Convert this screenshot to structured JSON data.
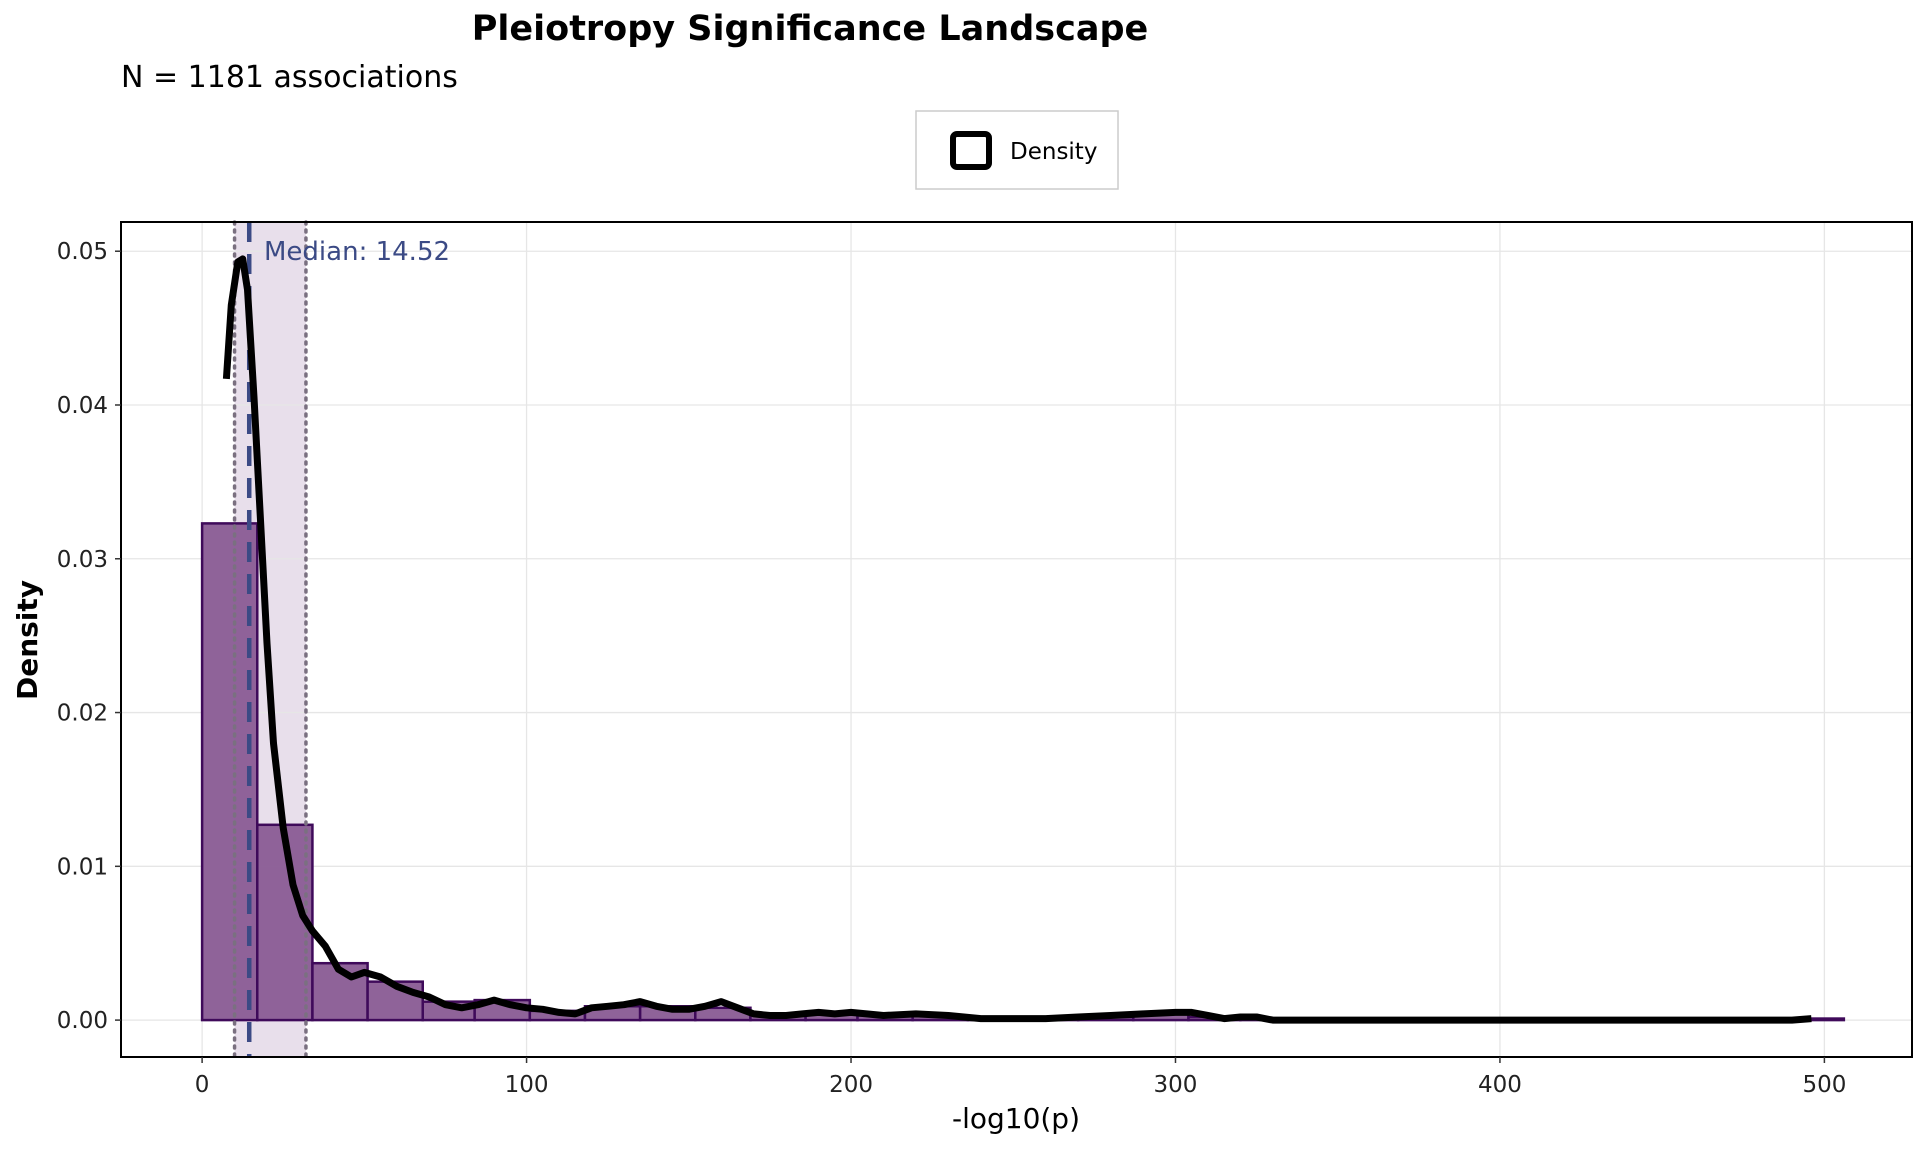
{
  "chart_data": {
    "type": "bar",
    "title": "Pleiotropy Significance Landscape",
    "subtitle": "N = 1181 associations",
    "xlabel": "-log10(p)",
    "ylabel": "Density",
    "xlim": [
      -25,
      527
    ],
    "ylim": [
      -0.0024,
      0.0519
    ],
    "xticks": [
      0,
      100,
      200,
      300,
      400,
      500
    ],
    "yticks": [
      0.0,
      0.01,
      0.02,
      0.03,
      0.04,
      0.05
    ],
    "xtick_labels": [
      "0",
      "100",
      "200",
      "300",
      "400",
      "500"
    ],
    "ytick_labels": [
      "0.00",
      "0.01",
      "0.02",
      "0.03",
      "0.04",
      "0.05"
    ],
    "grid": true,
    "legend": {
      "position": "top",
      "entries": [
        "Density"
      ]
    },
    "histogram": {
      "color_fill": "#8b5e96",
      "color_edge": "#3f0a5a",
      "bins": [
        {
          "x0": 0,
          "x1": 17,
          "density": 0.0323
        },
        {
          "x0": 17,
          "x1": 34,
          "density": 0.0127
        },
        {
          "x0": 34,
          "x1": 51,
          "density": 0.0037
        },
        {
          "x0": 51,
          "x1": 68,
          "density": 0.0025
        },
        {
          "x0": 68,
          "x1": 84,
          "density": 0.0012
        },
        {
          "x0": 84,
          "x1": 101,
          "density": 0.0013
        },
        {
          "x0": 101,
          "x1": 118,
          "density": 0.0006
        },
        {
          "x0": 118,
          "x1": 135,
          "density": 0.0009
        },
        {
          "x0": 135,
          "x1": 152,
          "density": 0.0009
        },
        {
          "x0": 152,
          "x1": 169,
          "density": 0.0008
        },
        {
          "x0": 169,
          "x1": 186,
          "density": 0.0003
        },
        {
          "x0": 186,
          "x1": 202,
          "density": 0.0004
        },
        {
          "x0": 202,
          "x1": 219,
          "density": 0.0003
        },
        {
          "x0": 219,
          "x1": 236,
          "density": 0.0003
        },
        {
          "x0": 236,
          "x1": 253,
          "density": 0.0001
        },
        {
          "x0": 253,
          "x1": 270,
          "density": 0.0001
        },
        {
          "x0": 270,
          "x1": 287,
          "density": 0.0002
        },
        {
          "x0": 287,
          "x1": 304,
          "density": 0.0004
        },
        {
          "x0": 304,
          "x1": 320,
          "density": 0.0002
        },
        {
          "x0": 320,
          "x1": 337,
          "density": 0.0001
        },
        {
          "x0": 337,
          "x1": 354,
          "density": 0.0
        },
        {
          "x0": 354,
          "x1": 371,
          "density": 0.0
        },
        {
          "x0": 371,
          "x1": 388,
          "density": 0.0
        },
        {
          "x0": 388,
          "x1": 405,
          "density": 0.0
        },
        {
          "x0": 405,
          "x1": 422,
          "density": 0.0
        },
        {
          "x0": 422,
          "x1": 438,
          "density": 0.0
        },
        {
          "x0": 438,
          "x1": 455,
          "density": 0.0
        },
        {
          "x0": 455,
          "x1": 472,
          "density": 0.0
        },
        {
          "x0": 472,
          "x1": 489,
          "density": 0.0
        },
        {
          "x0": 489,
          "x1": 506,
          "density": 0.0001
        }
      ]
    },
    "series": [
      {
        "name": "Density",
        "type": "line",
        "color": "#000000",
        "x": [
          7.5,
          9,
          11,
          12.5,
          14,
          16,
          18,
          20,
          22,
          25,
          28,
          31,
          34,
          38,
          42,
          46,
          50,
          55,
          60,
          65,
          70,
          75,
          80,
          85,
          90,
          95,
          100,
          105,
          110,
          115,
          120,
          125,
          130,
          135,
          140,
          145,
          150,
          155,
          160,
          165,
          170,
          175,
          180,
          185,
          190,
          195,
          200,
          210,
          220,
          230,
          240,
          250,
          260,
          270,
          280,
          290,
          300,
          305,
          310,
          315,
          320,
          325,
          330,
          340,
          360,
          400,
          450,
          490,
          496
        ],
        "y": [
          0.0417,
          0.0465,
          0.0493,
          0.0495,
          0.0475,
          0.0405,
          0.0325,
          0.0245,
          0.018,
          0.0125,
          0.0088,
          0.0068,
          0.0058,
          0.0048,
          0.0033,
          0.0028,
          0.0031,
          0.0028,
          0.0022,
          0.0018,
          0.0015,
          0.001,
          0.0008,
          0.001,
          0.0013,
          0.001,
          0.0008,
          0.0007,
          0.0005,
          0.0004,
          0.0008,
          0.0009,
          0.001,
          0.0012,
          0.0009,
          0.0007,
          0.0007,
          0.0009,
          0.0012,
          0.0008,
          0.0004,
          0.0003,
          0.0003,
          0.0004,
          0.0005,
          0.0004,
          0.0005,
          0.0003,
          0.0004,
          0.0003,
          0.0001,
          0.0001,
          0.0001,
          0.0002,
          0.0003,
          0.0004,
          0.0005,
          0.0005,
          0.0003,
          0.0001,
          0.0002,
          0.0002,
          0.0,
          0.0,
          0.0,
          0.0,
          0.0,
          0.0,
          0.0001
        ]
      }
    ],
    "median": {
      "value": 14.52,
      "label": "Median: 14.52",
      "color": "#3b4a85"
    },
    "iqr": {
      "q1": 10,
      "q3": 32,
      "fill": "#e8dfeb"
    }
  }
}
